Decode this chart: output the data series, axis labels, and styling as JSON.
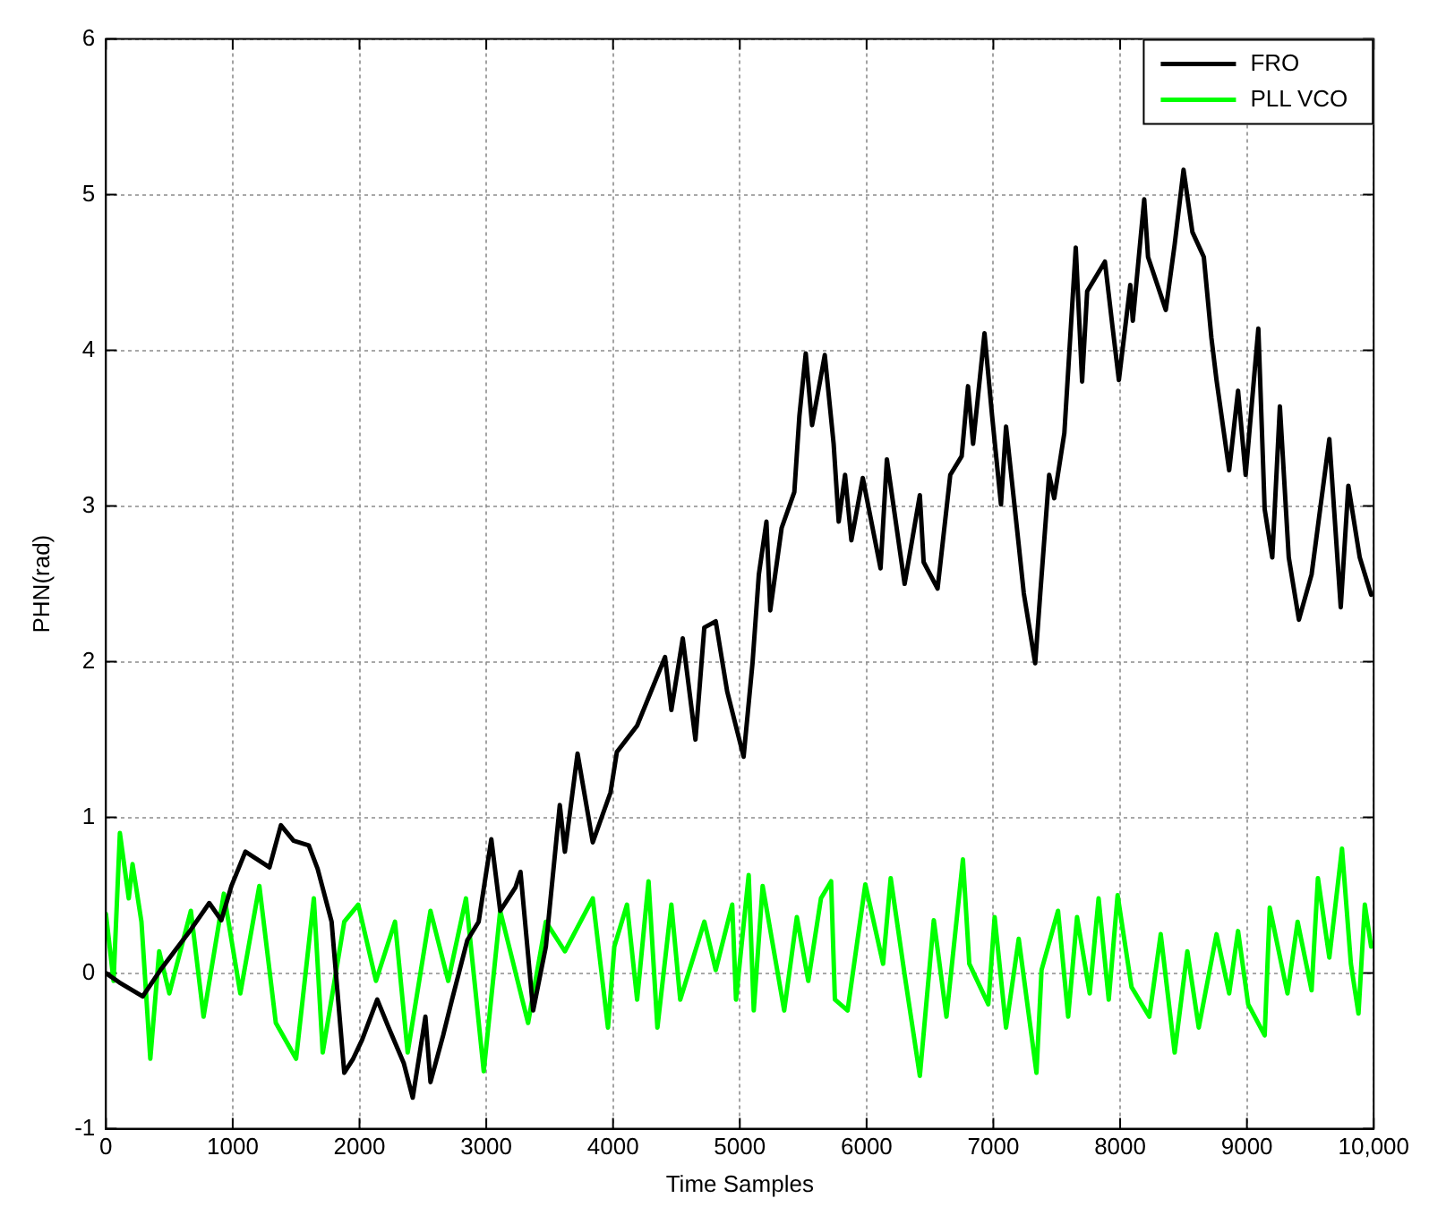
{
  "chart_data": {
    "type": "line",
    "xlabel": "Time Samples",
    "ylabel": "PHN(rad)",
    "xlim": [
      0,
      10000
    ],
    "xticks": [
      0,
      1000,
      2000,
      3000,
      4000,
      5000,
      6000,
      7000,
      8000,
      9000,
      {
        "value": 10000,
        "label": "10,000"
      }
    ],
    "ylim": [
      -1,
      6
    ],
    "yticks": [
      -1,
      0,
      1,
      2,
      3,
      4,
      5,
      6
    ],
    "grid": true,
    "legend": "top right",
    "marker": "none",
    "line_style": "solid",
    "series": [
      {
        "name": "FRO",
        "color": "#000000",
        "x": [
          0,
          106,
          290,
          430,
          670,
          815,
          910,
          990,
          1100,
          1290,
          1380,
          1480,
          1600,
          1670,
          1780,
          1880,
          1950,
          2020,
          2140,
          2230,
          2350,
          2420,
          2520,
          2560,
          2660,
          2730,
          2850,
          2940,
          3040,
          3110,
          3230,
          3270,
          3370,
          3470,
          3580,
          3620,
          3720,
          3840,
          3980,
          4030,
          4190,
          4410,
          4460,
          4550,
          4650,
          4720,
          4810,
          4900,
          5030,
          5100,
          5150,
          5210,
          5240,
          5330,
          5430,
          5470,
          5520,
          5570,
          5670,
          5740,
          5780,
          5830,
          5880,
          5970,
          6110,
          6160,
          6300,
          6420,
          6450,
          6560,
          6660,
          6750,
          6800,
          6840,
          6930,
          6990,
          7060,
          7100,
          7200,
          7240,
          7330,
          7370,
          7440,
          7480,
          7560,
          7600,
          7650,
          7700,
          7740,
          7880,
          7940,
          7990,
          8080,
          8100,
          8190,
          8220,
          8360,
          8430,
          8500,
          8570,
          8660,
          8720,
          8760,
          8860,
          8930,
          8990,
          9090,
          9140,
          9200,
          9260,
          9330,
          9410,
          9510,
          9650,
          9740,
          9800,
          9890,
          9980
        ],
        "values": [
          0,
          -0.06,
          -0.15,
          0.02,
          0.28,
          0.45,
          0.34,
          0.56,
          0.78,
          0.68,
          0.95,
          0.85,
          0.82,
          0.67,
          0.33,
          -0.64,
          -0.55,
          -0.43,
          -0.17,
          -0.35,
          -0.58,
          -0.8,
          -0.28,
          -0.7,
          -0.4,
          -0.17,
          0.21,
          0.33,
          0.86,
          0.4,
          0.55,
          0.65,
          -0.24,
          0.17,
          1.08,
          0.78,
          1.41,
          0.84,
          1.16,
          1.42,
          1.59,
          2.03,
          1.69,
          2.15,
          1.5,
          2.22,
          2.26,
          1.81,
          1.39,
          1.99,
          2.56,
          2.9,
          2.33,
          2.86,
          3.09,
          3.58,
          3.98,
          3.52,
          3.97,
          3.4,
          2.9,
          3.2,
          2.78,
          3.18,
          2.6,
          3.3,
          2.5,
          3.07,
          2.64,
          2.47,
          3.2,
          3.32,
          3.77,
          3.4,
          4.11,
          3.58,
          3.01,
          3.51,
          2.75,
          2.44,
          1.99,
          2.44,
          3.2,
          3.05,
          3.47,
          4.0,
          4.66,
          3.8,
          4.38,
          4.57,
          4.15,
          3.81,
          4.42,
          4.19,
          4.97,
          4.6,
          4.26,
          4.68,
          5.16,
          4.76,
          4.6,
          4.08,
          3.81,
          3.23,
          3.74,
          3.2,
          4.14,
          2.98,
          2.67,
          3.64,
          2.67,
          2.27,
          2.56,
          3.43,
          2.35,
          3.13,
          2.67,
          2.43
        ]
      },
      {
        "name": "PLL VCO",
        "color": "#00ff00",
        "x": [
          0,
          60,
          110,
          180,
          210,
          280,
          350,
          420,
          500,
          670,
          770,
          930,
          1060,
          1210,
          1340,
          1500,
          1640,
          1710,
          1880,
          1990,
          2130,
          2280,
          2380,
          2560,
          2700,
          2840,
          2980,
          3110,
          3330,
          3470,
          3620,
          3840,
          3960,
          4010,
          4110,
          4190,
          4280,
          4350,
          4460,
          4530,
          4720,
          4810,
          4940,
          4970,
          5070,
          5110,
          5180,
          5350,
          5450,
          5540,
          5640,
          5720,
          5750,
          5850,
          5990,
          6130,
          6190,
          6300,
          6420,
          6530,
          6630,
          6760,
          6810,
          6960,
          7010,
          7100,
          7200,
          7340,
          7380,
          7510,
          7590,
          7660,
          7760,
          7830,
          7910,
          7980,
          8090,
          8230,
          8320,
          8430,
          8530,
          8620,
          8760,
          8860,
          8930,
          9010,
          9140,
          9180,
          9320,
          9400,
          9510,
          9560,
          9650,
          9750,
          9820,
          9880,
          9930,
          9980
        ],
        "values": [
          0.38,
          -0.05,
          0.9,
          0.48,
          0.7,
          0.33,
          -0.55,
          0.14,
          -0.13,
          0.4,
          -0.28,
          0.51,
          -0.13,
          0.56,
          -0.32,
          -0.55,
          0.48,
          -0.51,
          0.33,
          0.44,
          -0.05,
          0.33,
          -0.51,
          0.4,
          -0.05,
          0.48,
          -0.63,
          0.4,
          -0.32,
          0.33,
          0.14,
          0.48,
          -0.35,
          0.17,
          0.44,
          -0.17,
          0.59,
          -0.35,
          0.44,
          -0.17,
          0.33,
          0.02,
          0.44,
          -0.17,
          0.63,
          -0.24,
          0.56,
          -0.24,
          0.36,
          -0.05,
          0.48,
          0.59,
          -0.17,
          -0.24,
          0.57,
          0.06,
          0.61,
          -0.01,
          -0.66,
          0.34,
          -0.28,
          0.73,
          0.06,
          -0.2,
          0.36,
          -0.35,
          0.22,
          -0.64,
          0.02,
          0.4,
          -0.28,
          0.36,
          -0.13,
          0.48,
          -0.17,
          0.5,
          -0.09,
          -0.28,
          0.25,
          -0.51,
          0.14,
          -0.35,
          0.25,
          -0.13,
          0.27,
          -0.2,
          -0.4,
          0.42,
          -0.13,
          0.33,
          -0.11,
          0.61,
          0.1,
          0.8,
          0.06,
          -0.26,
          0.44,
          0.17
        ]
      }
    ]
  }
}
